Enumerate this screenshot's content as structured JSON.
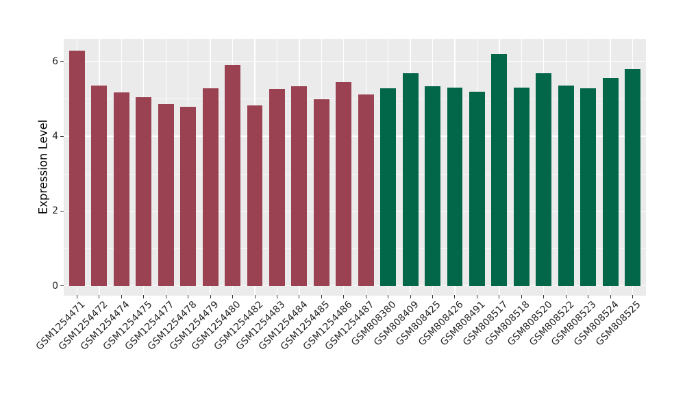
{
  "chart_data": {
    "type": "bar",
    "title": "",
    "xlabel": "",
    "ylabel": "Expression Level",
    "ylim": [
      -0.26,
      6.6
    ],
    "yticks": [
      0,
      2,
      4,
      6
    ],
    "yticks_minor": [
      1,
      3,
      5
    ],
    "grid": "horizontal major+minor and vertical major white gridlines on grey panel",
    "legend": "none",
    "panel_bg": "#EBEBEB",
    "grid_color": "#FFFFFF",
    "categories": [
      "GSM1254471",
      "GSM1254472",
      "GSM1254474",
      "GSM1254475",
      "GSM1254477",
      "GSM1254478",
      "GSM1254479",
      "GSM1254480",
      "GSM1254482",
      "GSM1254483",
      "GSM1254484",
      "GSM1254485",
      "GSM1254486",
      "GSM1254487",
      "GSM808380",
      "GSM808409",
      "GSM808425",
      "GSM808426",
      "GSM808491",
      "GSM808517",
      "GSM808518",
      "GSM808520",
      "GSM808522",
      "GSM808523",
      "GSM808524",
      "GSM808525"
    ],
    "values": [
      6.29,
      5.36,
      5.18,
      5.05,
      4.87,
      4.79,
      5.29,
      5.91,
      4.83,
      5.27,
      5.33,
      4.99,
      5.44,
      5.11,
      5.28,
      5.68,
      5.34,
      5.31,
      5.19,
      6.2,
      5.3,
      5.69,
      5.35,
      5.28,
      5.56,
      5.8
    ],
    "bar_groups": [
      "maroon",
      "maroon",
      "maroon",
      "maroon",
      "maroon",
      "maroon",
      "maroon",
      "maroon",
      "maroon",
      "maroon",
      "maroon",
      "maroon",
      "maroon",
      "maroon",
      "green",
      "green",
      "green",
      "green",
      "green",
      "green",
      "green",
      "green",
      "green",
      "green",
      "green",
      "green"
    ],
    "group_colors": {
      "maroon": "#9A4252",
      "green": "#026649"
    }
  }
}
